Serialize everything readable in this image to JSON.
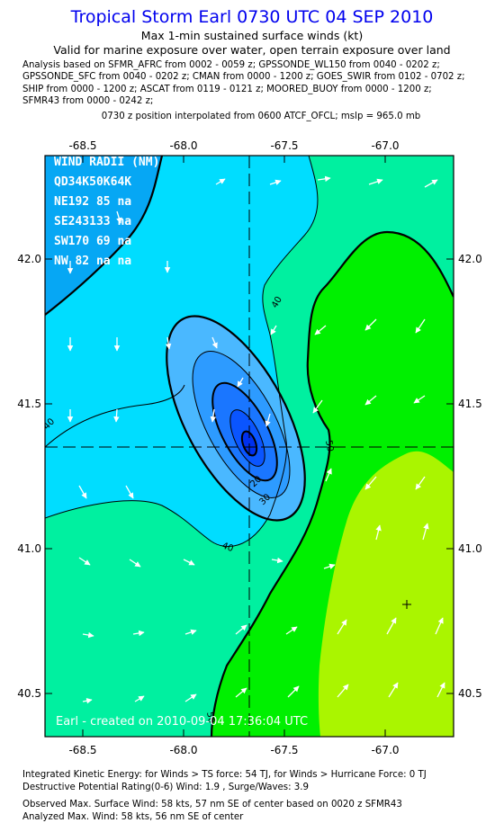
{
  "header": {
    "title": "Tropical Storm Earl 0730 UTC 04 SEP 2010",
    "subtitle": "Max 1-min sustained surface winds (kt)",
    "valid_line": "Valid for marine exposure over water, open terrain exposure over land",
    "analysis_lines": [
      "Analysis based on SFMR_AFRC from 0002 - 0059 z; GPSSONDE_WL150 from 0040 - 0202 z;",
      "GPSSONDE_SFC from 0040 - 0202 z; CMAN from 0000 - 1200 z; GOES_SWIR from 0102 - 0702 z;",
      "SHIP from 0000 - 1200 z; ASCAT from 0119 - 0121 z; MOORED_BUOY from 0000 - 1200 z;",
      "SFMR43 from 0000 - 0242 z;"
    ],
    "position_line": "0730 z position interpolated from 0600 ATCF_OFCL; mslp = 965.0 mb"
  },
  "map": {
    "x_ticks": [
      "-68.5",
      "-68.0",
      "-67.5",
      "-67.0"
    ],
    "y_ticks": [
      "42.0",
      "41.5",
      "41.0",
      "40.5"
    ],
    "wind_radii": [
      "WIND RADII (NM)",
      "QD34K50K64K",
      "NE192 85 na",
      "SE243133 na",
      "SW170 69 na",
      "NW 82 na na"
    ],
    "contour_labels": [
      "40",
      "40",
      "40",
      "50",
      "20",
      "30",
      "40",
      "50"
    ],
    "watermark": "Earl - created on 2010-09-04 17:36:04 UTC",
    "colors": {
      "lt30": "#06a7f4",
      "c30_40": "#00ddff",
      "c40_50": "#00f0a0",
      "c50_60": "#00f000",
      "c60p": "#aaf500",
      "core1": "#4ab8ff",
      "core2": "#1f8cff",
      "core3": "#0a5cff",
      "core4": "#0030f0"
    }
  },
  "footer": {
    "ike_line": "Integrated Kinetic Energy:  for Winds > TS force: 54 TJ,  for Winds > Hurricane Force: 0 TJ",
    "dpr_line": "Destructive Potential Rating(0-6)   Wind: 1.9 , Surge/Waves: 3.9",
    "obs_line": "Observed Max. Surface Wind: 58 kts, 57 nm SE of center based on 0020 z SFMR43",
    "analyzed_line": "Analyzed Max. Wind: 58 kts, 56 nm SE of center"
  }
}
